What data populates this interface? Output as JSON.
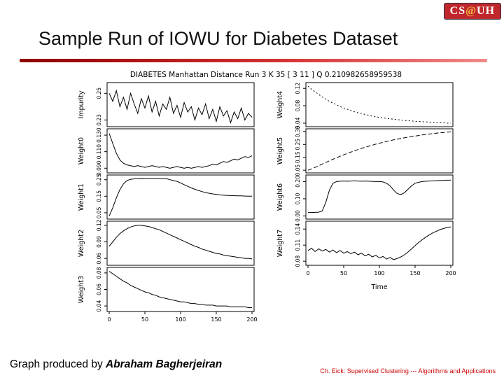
{
  "slide": {
    "title": "Sample Run of IOWU for Diabetes Dataset"
  },
  "logo": {
    "cs": "CS",
    "at": "@",
    "uh": "UH"
  },
  "footer": {
    "credit_prefix": "Graph produced by ",
    "credit_name": "Abraham Bagherjeiran",
    "attribution": "Ch. Eick: Supervised Clustering --- Algorithms and Applications"
  },
  "colors": {
    "accent_red": "#cc0000",
    "logo_red": "#c0272d",
    "line": "#000000"
  },
  "chart_data": {
    "type": "line",
    "title": "DIABETES Manhattan Distance Run 3 K 35 [ 3 11 ] Q 0.210982658959538",
    "x_ticks": [
      "0",
      "50",
      "100",
      "150",
      "200"
    ],
    "xlim": [
      0,
      200
    ],
    "grid": false,
    "legend": "none",
    "columns": [
      {
        "xlabel": "",
        "panels": [
          {
            "label": "Impurity",
            "yticks": [
              "0.23",
              "0.25"
            ],
            "ylim": [
              0.226,
              0.257
            ],
            "values": [
              0.25,
              0.244,
              0.252,
              0.24,
              0.247,
              0.238,
              0.25,
              0.242,
              0.235,
              0.246,
              0.239,
              0.248,
              0.236,
              0.244,
              0.233,
              0.242,
              0.238,
              0.247,
              0.235,
              0.241,
              0.232,
              0.243,
              0.236,
              0.24,
              0.23,
              0.239,
              0.234,
              0.242,
              0.231,
              0.238,
              0.229,
              0.24,
              0.233,
              0.237,
              0.228,
              0.236,
              0.231,
              0.239,
              0.23,
              0.235,
              0.232
            ]
          },
          {
            "label": "Weight0",
            "yticks": [
              "0.090",
              "0.110",
              "0.130"
            ],
            "ylim": [
              0.086,
              0.136
            ],
            "values": [
              0.132,
              0.12,
              0.108,
              0.1,
              0.096,
              0.094,
              0.093,
              0.092,
              0.093,
              0.092,
              0.091,
              0.092,
              0.093,
              0.092,
              0.091,
              0.092,
              0.091,
              0.09,
              0.091,
              0.092,
              0.091,
              0.09,
              0.091,
              0.09,
              0.091,
              0.092,
              0.091,
              0.092,
              0.093,
              0.095,
              0.094,
              0.096,
              0.098,
              0.097,
              0.099,
              0.101,
              0.1,
              0.102,
              0.104,
              0.103,
              0.105
            ]
          },
          {
            "label": "Weight1",
            "yticks": [
              "0.05",
              "0.15",
              "0.25"
            ],
            "ylim": [
              0.02,
              0.27
            ],
            "values": [
              0.03,
              0.08,
              0.14,
              0.19,
              0.225,
              0.245,
              0.252,
              0.255,
              0.256,
              0.257,
              0.256,
              0.257,
              0.258,
              0.257,
              0.256,
              0.255,
              0.256,
              0.25,
              0.245,
              0.24,
              0.23,
              0.22,
              0.21,
              0.2,
              0.192,
              0.185,
              0.178,
              0.172,
              0.168,
              0.164,
              0.161,
              0.158,
              0.156,
              0.155,
              0.154,
              0.153,
              0.152,
              0.152,
              0.151,
              0.15,
              0.15
            ]
          },
          {
            "label": "Weight2",
            "yticks": [
              "0.06",
              "0.09",
              "0.12"
            ],
            "ylim": [
              0.05,
              0.125
            ],
            "values": [
              0.082,
              0.09,
              0.098,
              0.105,
              0.11,
              0.114,
              0.117,
              0.119,
              0.12,
              0.12,
              0.119,
              0.118,
              0.116,
              0.114,
              0.112,
              0.109,
              0.106,
              0.103,
              0.1,
              0.097,
              0.094,
              0.091,
              0.088,
              0.085,
              0.082,
              0.08,
              0.077,
              0.075,
              0.073,
              0.071,
              0.069,
              0.068,
              0.066,
              0.065,
              0.064,
              0.063,
              0.062,
              0.061,
              0.06,
              0.06,
              0.059
            ]
          },
          {
            "label": "Weight3",
            "yticks": [
              "0.04",
              "0.06",
              "0.08"
            ],
            "ylim": [
              0.035,
              0.085
            ],
            "values": [
              0.082,
              0.079,
              0.076,
              0.073,
              0.07,
              0.068,
              0.065,
              0.063,
              0.061,
              0.059,
              0.057,
              0.056,
              0.054,
              0.053,
              0.051,
              0.05,
              0.049,
              0.048,
              0.047,
              0.046,
              0.045,
              0.045,
              0.044,
              0.043,
              0.043,
              0.042,
              0.042,
              0.041,
              0.041,
              0.041,
              0.04,
              0.04,
              0.04,
              0.04,
              0.039,
              0.039,
              0.039,
              0.039,
              0.039,
              0.038,
              0.038
            ]
          }
        ]
      },
      {
        "xlabel": "Time",
        "panels": [
          {
            "label": "Weight4",
            "yticks": [
              "0.04",
              "0.08",
              "0.12"
            ],
            "ylim": [
              0.035,
              0.13
            ],
            "dash": "2,3",
            "values": [
              0.125,
              0.118,
              0.112,
              0.106,
              0.1,
              0.095,
              0.09,
              0.086,
              0.082,
              0.078,
              0.075,
              0.072,
              0.069,
              0.066,
              0.064,
              0.062,
              0.06,
              0.058,
              0.056,
              0.055,
              0.053,
              0.052,
              0.051,
              0.05,
              0.049,
              0.048,
              0.047,
              0.046,
              0.046,
              0.045,
              0.044,
              0.044,
              0.043,
              0.043,
              0.042,
              0.042,
              0.041,
              0.041,
              0.041,
              0.04,
              0.04
            ]
          },
          {
            "label": "Weight5",
            "yticks": [
              "0.05",
              "0.15",
              "0.25",
              "0.35"
            ],
            "ylim": [
              0.04,
              0.36
            ],
            "dash": "6,3",
            "values": [
              0.05,
              0.06,
              0.072,
              0.085,
              0.098,
              0.11,
              0.123,
              0.135,
              0.147,
              0.158,
              0.169,
              0.18,
              0.19,
              0.2,
              0.21,
              0.219,
              0.228,
              0.236,
              0.244,
              0.252,
              0.259,
              0.266,
              0.273,
              0.279,
              0.285,
              0.291,
              0.296,
              0.301,
              0.306,
              0.311,
              0.315,
              0.319,
              0.323,
              0.327,
              0.33,
              0.334,
              0.337,
              0.34,
              0.342,
              0.345,
              0.347
            ]
          },
          {
            "label": "Weight6",
            "yticks": [
              "0.00",
              "0.10",
              "0.20"
            ],
            "ylim": [
              -0.01,
              0.23
            ],
            "values": [
              0.02,
              0.02,
              0.021,
              0.022,
              0.03,
              0.08,
              0.15,
              0.19,
              0.2,
              0.202,
              0.203,
              0.202,
              0.203,
              0.204,
              0.203,
              0.202,
              0.203,
              0.202,
              0.201,
              0.2,
              0.2,
              0.198,
              0.19,
              0.175,
              0.15,
              0.13,
              0.125,
              0.135,
              0.155,
              0.175,
              0.19,
              0.196,
              0.2,
              0.202,
              0.203,
              0.204,
              0.205,
              0.206,
              0.207,
              0.208,
              0.208
            ]
          },
          {
            "label": "Weight7",
            "yticks": [
              "0.08",
              "0.11",
              "0.14"
            ],
            "ylim": [
              0.075,
              0.152
            ],
            "values": [
              0.1,
              0.104,
              0.098,
              0.103,
              0.099,
              0.102,
              0.097,
              0.101,
              0.096,
              0.1,
              0.095,
              0.098,
              0.094,
              0.097,
              0.092,
              0.095,
              0.09,
              0.093,
              0.088,
              0.091,
              0.086,
              0.089,
              0.084,
              0.087,
              0.083,
              0.085,
              0.088,
              0.092,
              0.097,
              0.103,
              0.109,
              0.115,
              0.12,
              0.125,
              0.129,
              0.133,
              0.136,
              0.139,
              0.141,
              0.143,
              0.144
            ]
          }
        ]
      }
    ]
  }
}
